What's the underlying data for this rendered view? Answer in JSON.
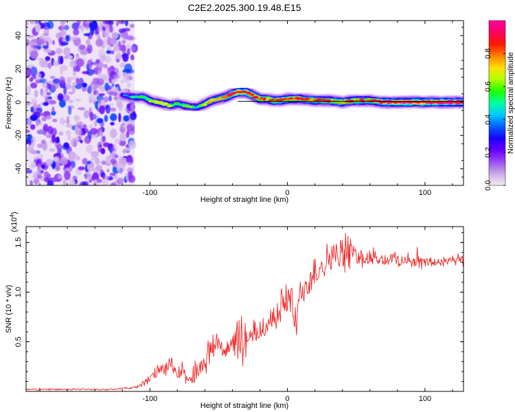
{
  "title": "C2E2.2025.300.19.48.E15",
  "chart_data": [
    {
      "type": "heatmap",
      "xlabel": "Height of straight line (km)",
      "ylabel": "Frequency (Hz)",
      "xlim": [
        -190,
        128
      ],
      "ylim": [
        -50,
        49
      ],
      "xticks": [
        -100,
        0,
        100
      ],
      "yticks": [
        -40,
        -20,
        0,
        20,
        40
      ],
      "colorbar": {
        "label": "Normalized spectral amplitude",
        "range": [
          0,
          1
        ],
        "ticks": [
          "0.0",
          "0.2",
          "0.4",
          "0.6",
          "0.8"
        ],
        "tick_values": [
          0.0,
          0.2,
          0.4,
          0.6,
          0.8
        ],
        "colors": [
          "#f2ecf5",
          "#cba9e8",
          "#9a4cf0",
          "#6a00ff",
          "#1a00ff",
          "#0060ff",
          "#00c8ff",
          "#00ffa0",
          "#20ff00",
          "#b0ff00",
          "#ffe000",
          "#ff8000",
          "#ff1800",
          "#ff0060",
          "#ff00a0"
        ]
      },
      "noise_region_x": [
        -190,
        -111
      ],
      "ridge": {
        "x": [
          -120,
          -112,
          -105,
          -100,
          -95,
          -90,
          -85,
          -80,
          -75,
          -70,
          -65,
          -60,
          -55,
          -50,
          -45,
          -40,
          -36,
          -30,
          -25,
          -20,
          -15,
          -10,
          -5,
          0,
          10,
          20,
          30,
          40,
          50,
          60,
          70,
          80,
          90,
          100,
          110,
          128
        ],
        "y": [
          4,
          3,
          3,
          1,
          0,
          -1,
          -2,
          -1,
          -2,
          -3,
          -3,
          -1,
          1,
          2,
          3,
          5,
          6,
          6,
          4,
          2,
          2,
          1,
          1,
          2,
          2,
          1,
          1,
          0,
          1,
          1,
          0,
          0,
          0,
          0,
          0,
          0
        ],
        "amp": [
          0.3,
          0.45,
          0.5,
          0.55,
          0.55,
          0.6,
          0.55,
          0.5,
          0.55,
          0.5,
          0.45,
          0.6,
          0.65,
          0.7,
          0.75,
          0.85,
          0.9,
          0.85,
          0.8,
          0.85,
          0.75,
          0.8,
          0.8,
          0.85,
          0.8,
          0.75,
          0.8,
          0.8,
          0.8,
          0.8,
          0.85,
          0.95,
          0.95,
          0.95,
          0.9,
          0.85
        ]
      },
      "fit_line_y": 0.5
    },
    {
      "type": "line",
      "xlabel": "Height of straight line (km)",
      "ylabel": "SNR (10 * v/v)",
      "scale_label": "(x10",
      "scale_exp": "4",
      "scale_close": ")",
      "xlim": [
        -190,
        128
      ],
      "ylim": [
        0.0,
        1.66
      ],
      "xticks": [
        -100,
        0,
        100
      ],
      "yticks": [
        0.5,
        1.0,
        1.5
      ],
      "ytick_labels": [
        "0.5",
        "1.0",
        "1.5"
      ],
      "line_color": "#ee2222",
      "series": [
        {
          "name": "SNR",
          "x": [
            -190,
            -160,
            -130,
            -120,
            -110,
            -100,
            -95,
            -90,
            -85,
            -80,
            -75,
            -70,
            -65,
            -60,
            -55,
            -50,
            -45,
            -40,
            -35,
            -32,
            -30,
            -25,
            -20,
            -15,
            -10,
            -5,
            0,
            3,
            5,
            8,
            10,
            15,
            20,
            25,
            30,
            40,
            45,
            50,
            60,
            70,
            80,
            90,
            100,
            110,
            128
          ],
          "y": [
            0.02,
            0.02,
            0.02,
            0.03,
            0.04,
            0.12,
            0.2,
            0.22,
            0.24,
            0.18,
            0.18,
            0.12,
            0.2,
            0.3,
            0.45,
            0.5,
            0.42,
            0.45,
            0.5,
            0.6,
            0.5,
            0.55,
            0.62,
            0.68,
            0.72,
            0.85,
            0.93,
            0.98,
            0.6,
            0.9,
            1.02,
            1.1,
            1.2,
            1.28,
            1.34,
            1.38,
            1.42,
            1.35,
            1.34,
            1.32,
            1.33,
            1.31,
            1.3,
            1.3,
            1.32
          ],
          "spread": [
            0.01,
            0.01,
            0.01,
            0.01,
            0.02,
            0.06,
            0.08,
            0.1,
            0.12,
            0.1,
            0.1,
            0.08,
            0.12,
            0.15,
            0.18,
            0.2,
            0.15,
            0.18,
            0.2,
            0.55,
            0.2,
            0.18,
            0.2,
            0.18,
            0.18,
            0.2,
            0.25,
            0.22,
            0.2,
            0.25,
            0.2,
            0.22,
            0.22,
            0.2,
            0.2,
            0.22,
            0.25,
            0.15,
            0.12,
            0.1,
            0.08,
            0.08,
            0.08,
            0.07,
            0.08
          ]
        }
      ]
    }
  ]
}
